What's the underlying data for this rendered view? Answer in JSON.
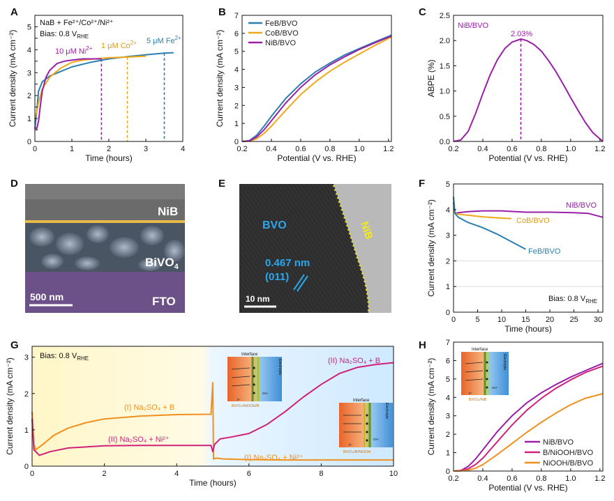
{
  "panels": {
    "A": {
      "label": "A"
    },
    "B": {
      "label": "B"
    },
    "C": {
      "label": "C"
    },
    "D": {
      "label": "D"
    },
    "E": {
      "label": "E"
    },
    "F": {
      "label": "F"
    },
    "G": {
      "label": "G"
    },
    "H": {
      "label": "H"
    }
  },
  "colors": {
    "Fe": "#2a7fb0",
    "Co": "#f0a818",
    "Ni": "#9a1fa8",
    "pink": "#d0207a",
    "orange": "#f0901e"
  },
  "chart_data": [
    {
      "id": "A",
      "type": "line",
      "title": "",
      "xlabel": "Time (hours)",
      "ylabel": "Current density (mA cm⁻²)",
      "xlim": [
        0,
        4
      ],
      "ylim": [
        0,
        5.5
      ],
      "xticks": [
        0,
        1,
        2,
        3,
        4
      ],
      "yticks": [
        0,
        0.5,
        1,
        1.5,
        2,
        2.5,
        3,
        3.5,
        4,
        4.5,
        5
      ],
      "xtick_labels": [
        "0",
        "1",
        "2",
        "3",
        "4"
      ],
      "ytick_labels": [
        "0",
        "",
        "1",
        "",
        "2",
        "",
        "3",
        "",
        "4",
        "",
        "5"
      ],
      "legend_text": [
        "NaB + Fe²⁺/Co²⁺/Ni²⁺",
        "Bias: 0.8 V",
        "RHE"
      ],
      "annotations": [
        {
          "text": "10 μM Ni",
          "sup": "2+",
          "color": "Ni"
        },
        {
          "text": "1 μM Co",
          "sup": "2+",
          "color": "Co"
        },
        {
          "text": "5 μM Fe",
          "sup": "2+",
          "color": "Fe"
        }
      ],
      "vlines": [
        {
          "x": 1.8,
          "color": "Ni"
        },
        {
          "x": 2.5,
          "color": "Co"
        },
        {
          "x": 3.5,
          "color": "Fe"
        }
      ],
      "series": [
        {
          "name": "Fe",
          "color": "Fe",
          "x": [
            0,
            0.05,
            0.1,
            0.2,
            0.4,
            0.7,
            1,
            1.5,
            2,
            2.5,
            3,
            3.5,
            3.75
          ],
          "y": [
            0.55,
            1.3,
            2.2,
            2.6,
            2.85,
            3.05,
            3.25,
            3.45,
            3.6,
            3.7,
            3.78,
            3.85,
            3.87
          ]
        },
        {
          "name": "Co",
          "color": "Co",
          "x": [
            0,
            0.05,
            0.1,
            0.2,
            0.4,
            0.7,
            1,
            1.3,
            1.6,
            2,
            2.5,
            3
          ],
          "y": [
            1.0,
            1.3,
            1.7,
            2.3,
            2.8,
            3.2,
            3.45,
            3.55,
            3.6,
            3.65,
            3.68,
            3.72
          ]
        },
        {
          "name": "Ni",
          "color": "Ni",
          "x": [
            0,
            0.05,
            0.1,
            0.15,
            0.2,
            0.3,
            0.4,
            0.6,
            0.8,
            1,
            1.3,
            1.8
          ],
          "y": [
            0.6,
            0.55,
            0.9,
            1.6,
            2.2,
            2.8,
            3.1,
            3.4,
            3.5,
            3.55,
            3.6,
            3.6
          ]
        }
      ]
    },
    {
      "id": "B",
      "type": "line",
      "xlabel": "Potential (V vs. RHE)",
      "ylabel": "Current density (mA cm⁻²)",
      "xlim": [
        0.2,
        1.22
      ],
      "ylim": [
        0,
        7
      ],
      "xticks": [
        0.2,
        0.4,
        0.6,
        0.8,
        1.0,
        1.2
      ],
      "xtick_labels": [
        "0.2",
        "0.4",
        "0.6",
        "0.8",
        "1.0",
        "1.2"
      ],
      "yticks": [
        0,
        1,
        2,
        3,
        4,
        5,
        6,
        7
      ],
      "ytick_labels": [
        "0",
        "1",
        "2",
        "3",
        "4",
        "5",
        "6",
        "7"
      ],
      "series": [
        {
          "name": "FeB/BVO",
          "color": "Fe",
          "x": [
            0.2,
            0.25,
            0.3,
            0.35,
            0.4,
            0.5,
            0.6,
            0.7,
            0.8,
            0.9,
            1.0,
            1.1,
            1.22
          ],
          "y": [
            0,
            0.05,
            0.35,
            0.85,
            1.4,
            2.4,
            3.2,
            3.85,
            4.35,
            4.8,
            5.15,
            5.5,
            5.9
          ]
        },
        {
          "name": "CoB/BVO",
          "color": "Co",
          "x": [
            0.2,
            0.25,
            0.3,
            0.35,
            0.4,
            0.5,
            0.6,
            0.7,
            0.8,
            0.9,
            1.0,
            1.1,
            1.22
          ],
          "y": [
            0,
            0.02,
            0.15,
            0.45,
            0.85,
            1.75,
            2.6,
            3.3,
            3.9,
            4.4,
            4.85,
            5.3,
            5.8
          ]
        },
        {
          "name": "NiB/BVO",
          "color": "Ni",
          "x": [
            0.2,
            0.25,
            0.3,
            0.35,
            0.4,
            0.5,
            0.6,
            0.7,
            0.8,
            0.9,
            1.0,
            1.1,
            1.22
          ],
          "y": [
            0,
            0.03,
            0.25,
            0.65,
            1.15,
            2.15,
            3.0,
            3.7,
            4.25,
            4.7,
            5.1,
            5.45,
            5.85
          ]
        }
      ]
    },
    {
      "id": "C",
      "type": "line",
      "xlabel": "Potential (V vs. RHE)",
      "ylabel": "ABPE (%)",
      "xlim": [
        0.2,
        1.22
      ],
      "ylim": [
        0,
        2.5
      ],
      "xticks": [
        0.2,
        0.4,
        0.6,
        0.8,
        1.0,
        1.2
      ],
      "xtick_labels": [
        "0.2",
        "0.4",
        "0.6",
        "0.8",
        "1.0",
        "1.2"
      ],
      "yticks": [
        0,
        0.5,
        1.0,
        1.5,
        2.0,
        2.5
      ],
      "ytick_labels": [
        "0.0",
        "0.5",
        "1.0",
        "1.5",
        "2.0",
        "2.5"
      ],
      "legend_text": "NiB/BVO",
      "peak_label": "2.03%",
      "peak_x": 0.66,
      "series": [
        {
          "name": "NiB/BVO",
          "color": "Ni",
          "x": [
            0.2,
            0.25,
            0.3,
            0.35,
            0.4,
            0.45,
            0.5,
            0.55,
            0.6,
            0.66,
            0.7,
            0.75,
            0.8,
            0.85,
            0.9,
            0.95,
            1.0,
            1.05,
            1.1,
            1.15,
            1.22
          ],
          "y": [
            0,
            0.03,
            0.2,
            0.55,
            0.95,
            1.32,
            1.62,
            1.84,
            1.97,
            2.03,
            2.0,
            1.92,
            1.79,
            1.6,
            1.38,
            1.13,
            0.87,
            0.62,
            0.38,
            0.18,
            0
          ]
        }
      ]
    },
    {
      "id": "F",
      "type": "line",
      "xlabel": "Time (hours)",
      "ylabel": "Current density (mA cm⁻²)",
      "xlim": [
        0,
        31
      ],
      "ylim": [
        0,
        5
      ],
      "xticks": [
        0,
        5,
        10,
        15,
        20,
        25,
        30
      ],
      "xtick_labels": [
        "0",
        "5",
        "10",
        "15",
        "20",
        "25",
        "30"
      ],
      "yticks": [
        0,
        1,
        2,
        3,
        4,
        5
      ],
      "ytick_labels": [
        "0",
        "1",
        "2",
        "3",
        "4",
        "5"
      ],
      "bias_text": "Bias: 0.8 V",
      "bias_sub": "RHE",
      "series": [
        {
          "name": "NiB/BVO",
          "color": "Ni",
          "x": [
            0,
            0.3,
            1,
            3,
            6,
            10,
            15,
            20,
            25,
            28,
            31
          ],
          "y": [
            4.3,
            3.85,
            3.88,
            3.92,
            3.95,
            3.95,
            3.9,
            3.9,
            3.88,
            3.85,
            3.7
          ]
        },
        {
          "name": "CoB/BVO",
          "color": "Co",
          "x": [
            0,
            0.3,
            1,
            3,
            6,
            9,
            12
          ],
          "y": [
            4.2,
            3.85,
            3.82,
            3.78,
            3.72,
            3.68,
            3.65
          ]
        },
        {
          "name": "FeB/BVO",
          "color": "Fe",
          "x": [
            0,
            0.3,
            1,
            3,
            6,
            9,
            12,
            15
          ],
          "y": [
            4.5,
            3.85,
            3.7,
            3.5,
            3.3,
            3.05,
            2.75,
            2.45
          ]
        }
      ]
    },
    {
      "id": "G",
      "type": "line",
      "xlabel": "Time (hours)",
      "ylabel": "Current density (mA cm⁻²)",
      "xlim": [
        0,
        10
      ],
      "ylim": [
        0,
        3.3
      ],
      "xticks": [
        0,
        2,
        4,
        6,
        8,
        10
      ],
      "xtick_labels": [
        "0",
        "2",
        "4",
        "6",
        "8",
        "10"
      ],
      "yticks": [
        0,
        1,
        2,
        3
      ],
      "ytick_labels": [
        "0",
        "1",
        "2",
        "3"
      ],
      "bias_text": "Bias: 0.8 V",
      "bias_sub": "RHE",
      "labels": [
        {
          "text": "(I) Na₂SO₄ + B",
          "color": "orange"
        },
        {
          "text": "(II) Na₂SO₄ + Ni²⁺",
          "color": "pink"
        },
        {
          "text": "(I) Na₂SO₄ + Ni²⁺",
          "color": "orange"
        },
        {
          "text": "(II) Na₂SO₄ + B",
          "color": "pink"
        }
      ],
      "series": [
        {
          "name": "(I)",
          "color": "orange",
          "x": [
            0,
            0.05,
            0.1,
            0.3,
            0.6,
            1,
            1.5,
            2,
            3,
            4,
            4.95,
            5.0,
            5.02,
            5.1,
            5.3,
            6,
            7,
            8,
            9,
            10
          ],
          "y": [
            1.5,
            0.6,
            0.45,
            0.6,
            0.85,
            1.05,
            1.2,
            1.3,
            1.38,
            1.42,
            1.43,
            2.3,
            0.2,
            0.22,
            0.2,
            0.18,
            0.17,
            0.17,
            0.17,
            0.17
          ]
        },
        {
          "name": "(II)",
          "color": "pink",
          "x": [
            0,
            0.05,
            0.2,
            0.5,
            1,
            2,
            3,
            4,
            4.95,
            5.0,
            5.05,
            5.2,
            5.5,
            6,
            6.5,
            7,
            7.5,
            8,
            8.5,
            9,
            9.5,
            10
          ],
          "y": [
            1.3,
            0.45,
            0.3,
            0.4,
            0.5,
            0.56,
            0.57,
            0.57,
            0.57,
            0.4,
            0.6,
            0.75,
            0.8,
            0.9,
            1.15,
            1.5,
            1.9,
            2.25,
            2.55,
            2.72,
            2.8,
            2.85
          ]
        }
      ]
    },
    {
      "id": "H",
      "type": "line",
      "xlabel": "Potential (V vs. RHE)",
      "ylabel": "Current density (mA cm⁻²)",
      "xlim": [
        0.2,
        1.22
      ],
      "ylim": [
        0,
        7
      ],
      "xticks": [
        0.2,
        0.4,
        0.6,
        0.8,
        1.0,
        1.2
      ],
      "xtick_labels": [
        "0.2",
        "0.4",
        "0.6",
        "0.8",
        "1.0",
        "1.2"
      ],
      "yticks": [
        0,
        1,
        2,
        3,
        4,
        5,
        6,
        7
      ],
      "ytick_labels": [
        "0",
        "1",
        "2",
        "3",
        "4",
        "5",
        "6",
        "7"
      ],
      "series": [
        {
          "name": "NiB/BVO",
          "color": "Ni",
          "x": [
            0.2,
            0.25,
            0.3,
            0.35,
            0.4,
            0.5,
            0.6,
            0.7,
            0.8,
            0.9,
            1.0,
            1.1,
            1.22
          ],
          "y": [
            0,
            0.03,
            0.25,
            0.65,
            1.15,
            2.15,
            3.0,
            3.7,
            4.25,
            4.7,
            5.1,
            5.45,
            5.85
          ]
        },
        {
          "name": "B/NiOOH/BVO",
          "color": "pink",
          "x": [
            0.2,
            0.25,
            0.3,
            0.35,
            0.4,
            0.5,
            0.6,
            0.7,
            0.8,
            0.9,
            1.0,
            1.1,
            1.22
          ],
          "y": [
            0,
            0.02,
            0.12,
            0.35,
            0.7,
            1.6,
            2.5,
            3.3,
            3.95,
            4.5,
            4.95,
            5.35,
            5.7
          ]
        },
        {
          "name": "NiOOH/B/BVO",
          "color": "orange",
          "x": [
            0.2,
            0.25,
            0.3,
            0.35,
            0.4,
            0.5,
            0.6,
            0.7,
            0.8,
            0.9,
            1.0,
            1.1,
            1.22
          ],
          "y": [
            0,
            0.01,
            0.05,
            0.15,
            0.35,
            0.9,
            1.5,
            2.1,
            2.65,
            3.15,
            3.6,
            3.95,
            4.2
          ]
        }
      ]
    }
  ],
  "images": {
    "D": {
      "nib": "NiB",
      "bivo": "BiVO",
      "bivo_sub": "4",
      "fto": "FTO",
      "scale": "500 nm"
    },
    "E": {
      "bvo": "BVO",
      "nib": "NiB",
      "spacing": "0.467 nm",
      "plane": "(011)",
      "scale": "10 nm"
    }
  },
  "insets": {
    "interface": "Interface",
    "electrolyte": "Electrolyte",
    "oh": "OH⁻",
    "h": "h⁺",
    "g1": "BiVO₄/NiOOH/B",
    "g2": "BiVO₄/B/NiOOH",
    "h_inset": "BiVO₄/NiB"
  }
}
